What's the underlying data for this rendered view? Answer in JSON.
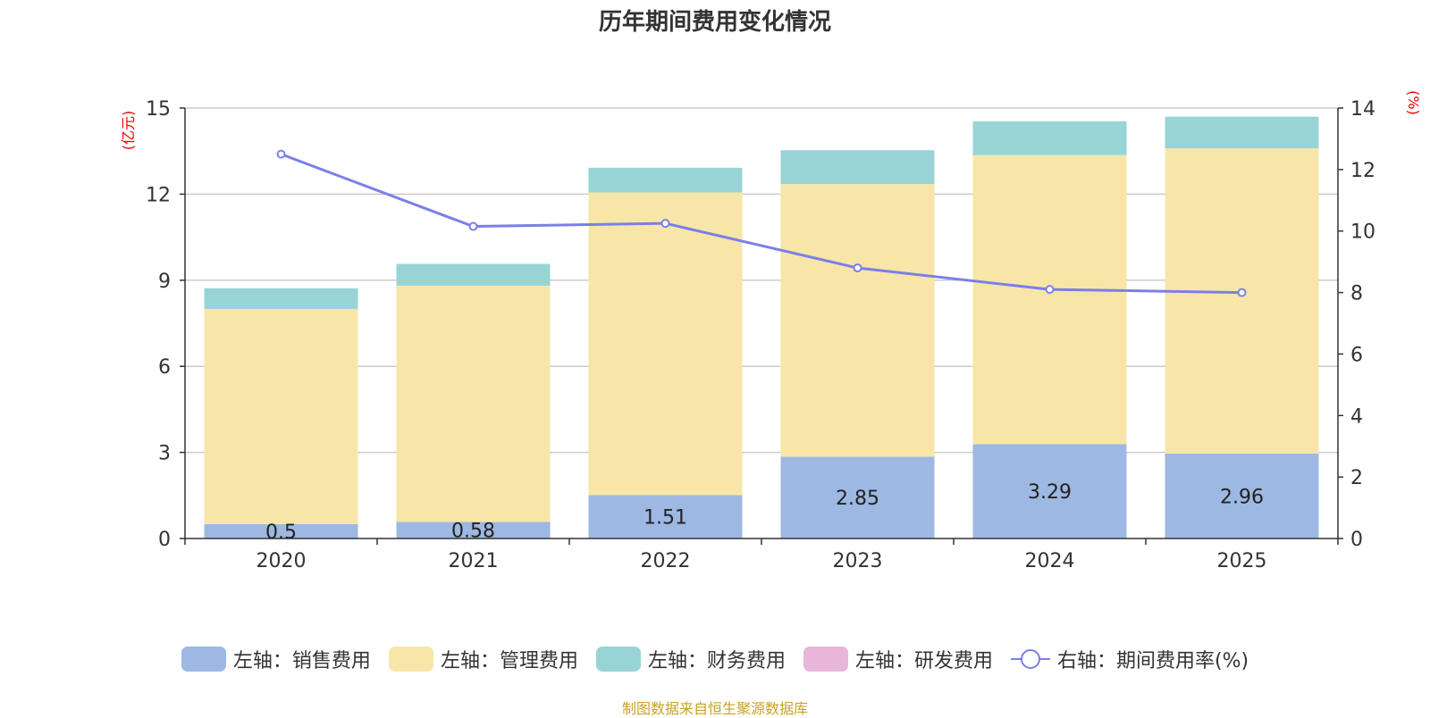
{
  "title": "历年期间费用变化情况",
  "source": "制图数据来自恒生聚源数据库",
  "chart_data": {
    "type": "bar",
    "stacked": true,
    "categories": [
      "2020",
      "2021",
      "2022",
      "2023",
      "2024",
      "2025"
    ],
    "left_axis": {
      "label": "(亿元)",
      "min": 0,
      "max": 15,
      "ticks": [
        "0",
        "3",
        "6",
        "9",
        "12",
        "15"
      ]
    },
    "right_axis": {
      "label": "(%)",
      "min": 0,
      "max": 14,
      "ticks": [
        "0",
        "2",
        "4",
        "6",
        "8",
        "10",
        "12",
        "14"
      ]
    },
    "series": [
      {
        "name": "左轴：销售费用",
        "axis": "left",
        "type": "bar",
        "color": "#9db8e2",
        "values": [
          0.5,
          0.58,
          1.51,
          2.85,
          3.29,
          2.96
        ],
        "labels": [
          "0.5",
          "0.58",
          "1.51",
          "2.85",
          "3.29",
          "2.96"
        ]
      },
      {
        "name": "左轴：管理费用",
        "axis": "left",
        "type": "bar",
        "color": "#f7e6a8",
        "values": [
          7.5,
          8.23,
          10.55,
          9.5,
          10.07,
          10.64
        ]
      },
      {
        "name": "左轴：财务费用",
        "axis": "left",
        "type": "bar",
        "color": "#98d4d5",
        "values": [
          0.72,
          0.76,
          0.86,
          1.18,
          1.18,
          1.1
        ]
      },
      {
        "name": "左轴：研发费用",
        "axis": "left",
        "type": "bar",
        "color": "#e8b6d8",
        "values": [
          0,
          0,
          0,
          0,
          0,
          0
        ]
      },
      {
        "name": "右轴：期间费用率(%)",
        "axis": "right",
        "type": "line",
        "color": "#7b7fe8",
        "values": [
          12.5,
          10.15,
          10.25,
          8.8,
          8.1,
          8.0
        ]
      }
    ]
  }
}
